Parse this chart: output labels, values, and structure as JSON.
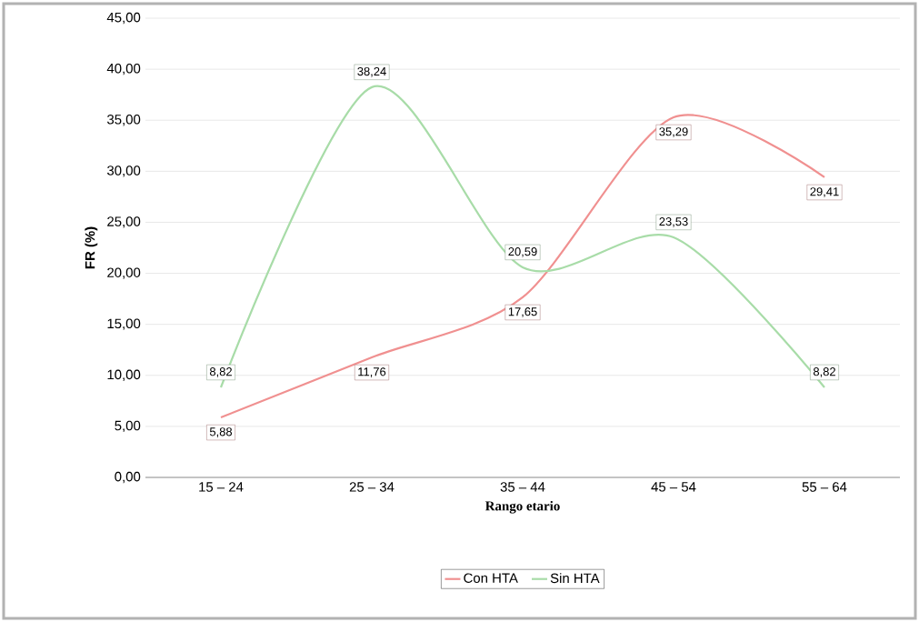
{
  "chart_data": {
    "type": "line",
    "xlabel": "Rango etario",
    "ylabel": "FR (%)",
    "categories": [
      "15 – 24",
      "25 – 34",
      "35 – 44",
      "45 – 54",
      "55 – 64"
    ],
    "series": [
      {
        "name": "Con HTA",
        "color": "#f09090",
        "values": [
          5.88,
          11.76,
          17.65,
          35.29,
          29.41
        ],
        "value_labels": [
          "5,88",
          "11,76",
          "17,65",
          "35,29",
          "29,41"
        ]
      },
      {
        "name": "Sin HTA",
        "color": "#a8dca8",
        "values": [
          8.82,
          38.24,
          20.59,
          23.53,
          8.82
        ],
        "value_labels": [
          "8,82",
          "38,24",
          "20,59",
          "23,53",
          "8,82"
        ]
      }
    ],
    "ylim": [
      0,
      45
    ],
    "yticks": [
      {
        "value": 0,
        "label": "0,00"
      },
      {
        "value": 5,
        "label": "5,00"
      },
      {
        "value": 10,
        "label": "10,00"
      },
      {
        "value": 15,
        "label": "15,00"
      },
      {
        "value": 20,
        "label": "20,00"
      },
      {
        "value": 25,
        "label": "25,00"
      },
      {
        "value": 30,
        "label": "30,00"
      },
      {
        "value": 35,
        "label": "35,00"
      },
      {
        "value": 40,
        "label": "40,00"
      },
      {
        "value": 45,
        "label": "45,00"
      }
    ],
    "grid": "y",
    "legend": "bottom",
    "marker": "none",
    "line_style": "solid"
  }
}
